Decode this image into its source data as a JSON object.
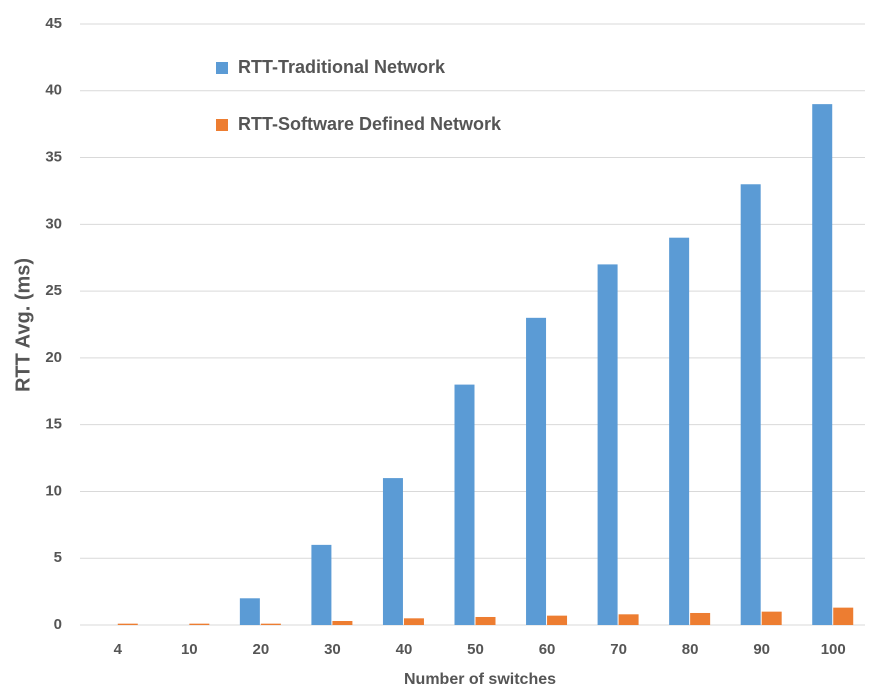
{
  "chart_data": {
    "type": "bar",
    "x_label": "Number of switches",
    "y_label": "RTT Avg.  (ms)",
    "categories": [
      "4",
      "10",
      "20",
      "30",
      "40",
      "50",
      "60",
      "70",
      "80",
      "90",
      "100"
    ],
    "series": [
      {
        "name": "RTT-Traditional Network",
        "color": "#5b9bd5",
        "values": [
          0,
          0,
          2,
          6,
          11,
          18,
          23,
          27,
          29,
          33,
          39
        ]
      },
      {
        "name": "RTT-Software Defined Network",
        "color": "#ed7d31",
        "values": [
          0.1,
          0.1,
          0.1,
          0.3,
          0.5,
          0.6,
          0.7,
          0.8,
          0.9,
          1.0,
          1.3
        ]
      }
    ],
    "ylim": [
      0,
      45
    ],
    "yticks": [
      0,
      5,
      10,
      15,
      20,
      25,
      30,
      35,
      40,
      45
    ],
    "grid": true
  }
}
